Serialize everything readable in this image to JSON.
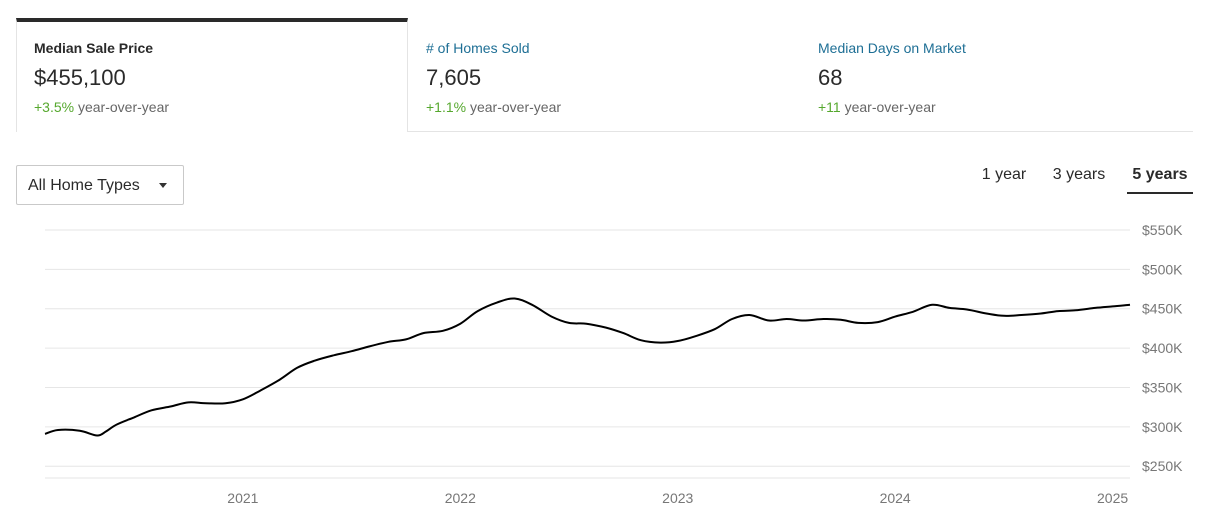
{
  "metrics": [
    {
      "title": "Median Sale Price",
      "value": "$455,100",
      "change_pct": "+3.5%",
      "change_text": "year-over-year",
      "active": true
    },
    {
      "title": "# of Homes Sold",
      "value": "7,605",
      "change_pct": "+1.1%",
      "change_text": "year-over-year",
      "active": false
    },
    {
      "title": "Median Days on Market",
      "value": "68",
      "change_pct": "+11",
      "change_text": "year-over-year",
      "active": false
    }
  ],
  "filters": {
    "home_type": "All Home Types",
    "ranges": [
      "1 year",
      "3 years",
      "5 years"
    ],
    "selected_range": "5 years"
  },
  "colors": {
    "accent_link": "#1e6f95",
    "positive": "#56a82e",
    "line": "#000000",
    "grid": "#e6e6e6"
  },
  "chart_data": {
    "type": "line",
    "title": "",
    "xlabel": "",
    "ylabel": "",
    "ylim": [
      235000,
      550000
    ],
    "yticks": [
      250000,
      300000,
      350000,
      400000,
      450000,
      500000,
      550000
    ],
    "ytick_labels": [
      "$250K",
      "$300K",
      "$350K",
      "$400K",
      "$450K",
      "$500K",
      "$550K"
    ],
    "xlim": [
      2020.09,
      2025.08
    ],
    "xticks": [
      2021.0,
      2022.0,
      2023.0,
      2024.0,
      2025.0
    ],
    "xtick_labels": [
      "2021",
      "2022",
      "2023",
      "2024",
      "2025"
    ],
    "grid": true,
    "series": [
      {
        "x": [
          2020.09,
          2020.15,
          2020.25,
          2020.33,
          2020.37,
          2020.42,
          2020.5,
          2020.58,
          2020.67,
          2020.75,
          2020.83,
          2020.92,
          2021.0,
          2021.08,
          2021.17,
          2021.25,
          2021.33,
          2021.42,
          2021.5,
          2021.58,
          2021.67,
          2021.75,
          2021.83,
          2021.92,
          2022.0,
          2022.08,
          2022.17,
          2022.25,
          2022.33,
          2022.42,
          2022.5,
          2022.58,
          2022.67,
          2022.75,
          2022.83,
          2022.92,
          2023.0,
          2023.08,
          2023.17,
          2023.25,
          2023.33,
          2023.42,
          2023.5,
          2023.58,
          2023.67,
          2023.75,
          2023.83,
          2023.92,
          2024.0,
          2024.08,
          2024.17,
          2024.25,
          2024.33,
          2024.42,
          2024.5,
          2024.58,
          2024.67,
          2024.75,
          2024.83,
          2024.92,
          2025.0,
          2025.08
        ],
        "values": [
          291000,
          296000,
          295000,
          289000,
          294000,
          303000,
          312000,
          321000,
          326000,
          331000,
          330000,
          330000,
          335000,
          346000,
          360000,
          375000,
          384000,
          391000,
          396000,
          402000,
          408000,
          411000,
          419000,
          422000,
          431000,
          447000,
          458000,
          463000,
          455000,
          440000,
          432000,
          431000,
          426000,
          419000,
          410000,
          407000,
          409000,
          415000,
          424000,
          437000,
          442000,
          435000,
          437000,
          435000,
          437000,
          436000,
          432000,
          433000,
          440000,
          446000,
          455000,
          451000,
          449000,
          444000,
          441000,
          442000,
          444000,
          447000,
          448000,
          451000,
          453000,
          455000
        ]
      }
    ]
  }
}
